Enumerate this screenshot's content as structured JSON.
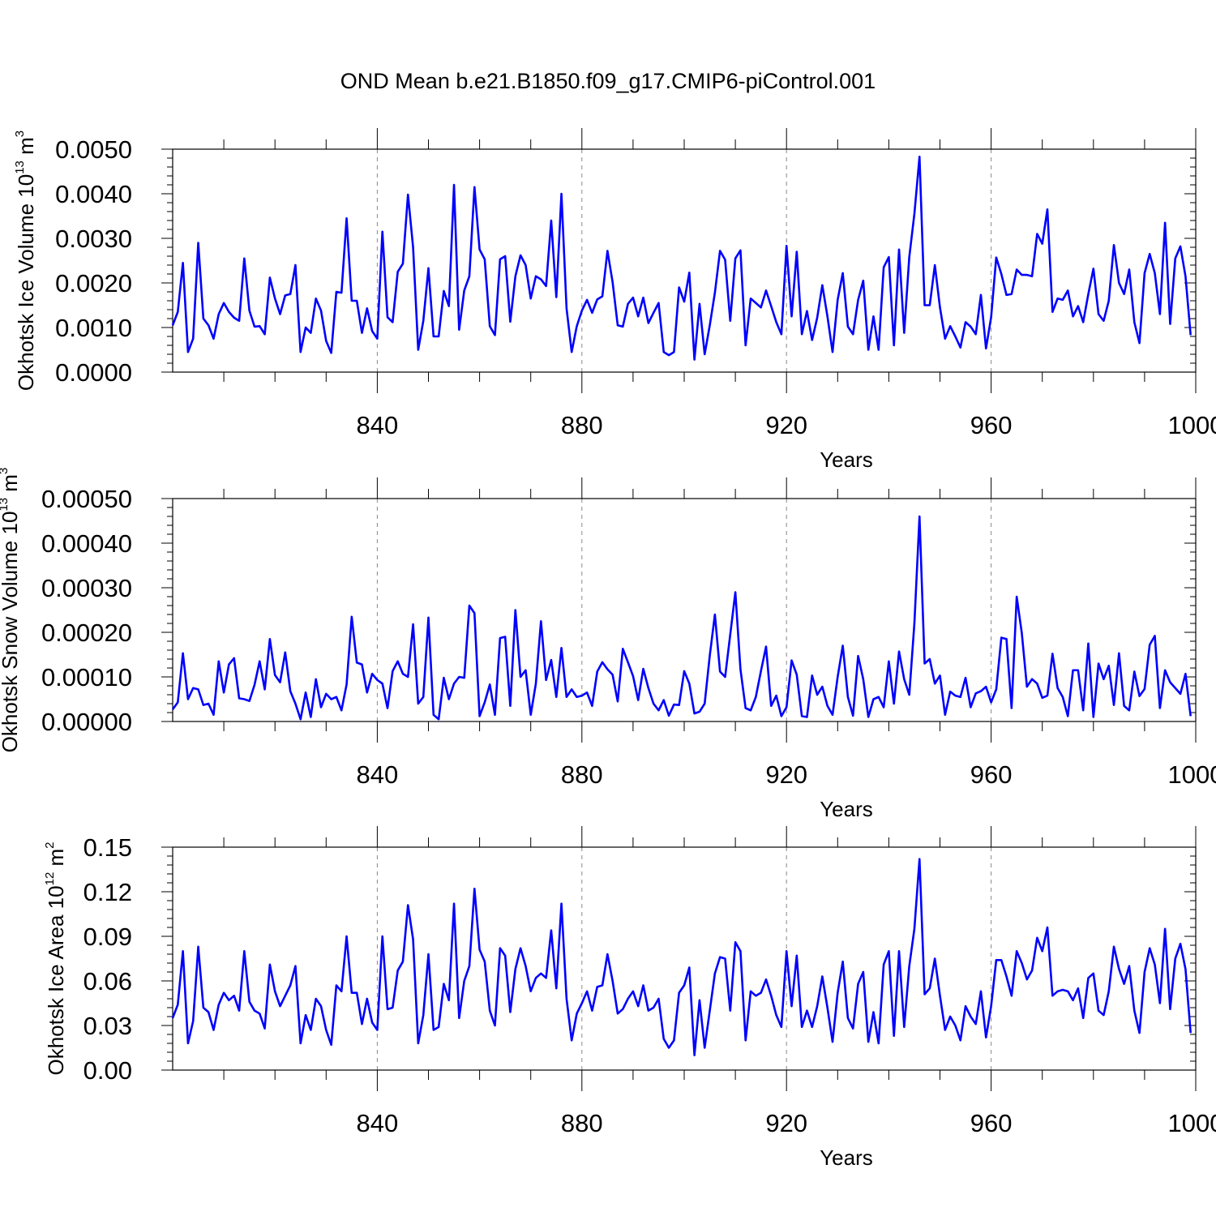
{
  "title": "OND Mean b.e21.B1850.f09_g17.CMIP6-piControl.001",
  "colors": {
    "series": "#0000ff",
    "axis": "#000000",
    "grid": "#888888"
  },
  "chart_data": [
    {
      "type": "line",
      "ylabel": "Okhotsk Ice Volume 10",
      "ylabel_sup": "13",
      "ylabel_unit": "m",
      "ylabel_unit_sup": "3",
      "xlabel": "Years",
      "xlim": [
        800,
        1000
      ],
      "ylim": [
        0,
        0.005
      ],
      "yticks": [
        "0.0000",
        "0.0010",
        "0.0020",
        "0.0030",
        "0.0040",
        "0.0050"
      ],
      "xticks": [
        "840",
        "880",
        "920",
        "960",
        "1000"
      ],
      "x_start": 800,
      "values": [
        0.00105,
        0.00135,
        0.00245,
        0.00045,
        0.00075,
        0.0029,
        0.0012,
        0.00105,
        0.00075,
        0.0013,
        0.00155,
        0.00135,
        0.00122,
        0.00115,
        0.00255,
        0.00138,
        0.00102,
        0.00103,
        0.00085,
        0.00212,
        0.00165,
        0.0013,
        0.00172,
        0.00175,
        0.0024,
        0.00045,
        0.001,
        0.00088,
        0.00165,
        0.00138,
        0.0007,
        0.00043,
        0.0018,
        0.00178,
        0.00345,
        0.0016,
        0.0016,
        0.00088,
        0.00143,
        0.00092,
        0.00075,
        0.00315,
        0.00123,
        0.00112,
        0.00225,
        0.00243,
        0.00398,
        0.0028,
        0.0005,
        0.00115,
        0.00233,
        0.0008,
        0.0008,
        0.00182,
        0.00148,
        0.0042,
        0.00095,
        0.00183,
        0.00215,
        0.00415,
        0.00275,
        0.00253,
        0.00103,
        0.00083,
        0.00253,
        0.0026,
        0.00113,
        0.00215,
        0.00262,
        0.0024,
        0.00165,
        0.00215,
        0.00208,
        0.00193,
        0.0034,
        0.00168,
        0.004,
        0.00143,
        0.00045,
        0.00103,
        0.00138,
        0.00162,
        0.00133,
        0.00163,
        0.0017,
        0.00272,
        0.00202,
        0.00105,
        0.00102,
        0.00153,
        0.00167,
        0.00125,
        0.00167,
        0.0011,
        0.00133,
        0.00155,
        0.00045,
        0.00038,
        0.00045,
        0.0019,
        0.00158,
        0.00223,
        0.00028,
        0.00153,
        0.0004,
        0.00105,
        0.00178,
        0.00272,
        0.00252,
        0.00115,
        0.00255,
        0.00273,
        0.0006,
        0.00165,
        0.00155,
        0.00145,
        0.00183,
        0.00148,
        0.00112,
        0.00085,
        0.00283,
        0.00125,
        0.0027,
        0.00085,
        0.00137,
        0.00072,
        0.00122,
        0.00195,
        0.00125,
        0.00045,
        0.00162,
        0.00222,
        0.00102,
        0.00085,
        0.00162,
        0.00205,
        0.0005,
        0.00125,
        0.0005,
        0.00235,
        0.00258,
        0.0006,
        0.00275,
        0.00088,
        0.00258,
        0.00355,
        0.00483,
        0.0015,
        0.0015,
        0.0024,
        0.00145,
        0.00075,
        0.00103,
        0.0008,
        0.00055,
        0.00112,
        0.00102,
        0.00085,
        0.00173,
        0.00053,
        0.00123,
        0.00257,
        0.0022,
        0.00173,
        0.00175,
        0.0023,
        0.00218,
        0.00218,
        0.00215,
        0.0031,
        0.00288,
        0.00365,
        0.00135,
        0.00165,
        0.00162,
        0.00183,
        0.00125,
        0.00148,
        0.00112,
        0.00175,
        0.00232,
        0.0013,
        0.00115,
        0.0016,
        0.00285,
        0.002,
        0.00175,
        0.0023,
        0.00112,
        0.00065,
        0.00222,
        0.00265,
        0.00222,
        0.0013,
        0.00335,
        0.00108,
        0.00255,
        0.00282,
        0.00215,
        0.00083
      ]
    },
    {
      "type": "line",
      "ylabel": "Okhotsk Snow Volume 10",
      "ylabel_sup": "13",
      "ylabel_unit": "m",
      "ylabel_unit_sup": "3",
      "xlabel": "Years",
      "xlim": [
        800,
        1000
      ],
      "ylim": [
        0,
        0.0005
      ],
      "yticks": [
        "0.00000",
        "0.00010",
        "0.00020",
        "0.00030",
        "0.00040",
        "0.00050"
      ],
      "xticks": [
        "840",
        "880",
        "920",
        "960",
        "1000"
      ],
      "x_start": 800,
      "values": [
        2.7e-05,
        4.3e-05,
        0.000153,
        5e-05,
        7.5e-05,
        7.2e-05,
        3.7e-05,
        4e-05,
        1.5e-05,
        0.000135,
        6.5e-05,
        0.000128,
        0.000142,
        5.2e-05,
        5e-05,
        4.6e-05,
        8.2e-05,
        0.000135,
        7.2e-05,
        0.000185,
        0.000104,
        8.8e-05,
        0.000155,
        6.8e-05,
        4e-05,
        5e-06,
        6.5e-05,
        1e-05,
        9.5e-05,
        3.2e-05,
        6.2e-05,
        5e-05,
        5.5e-05,
        2.5e-05,
        8.3e-05,
        0.000235,
        0.000132,
        0.000128,
        6.5e-05,
        0.000107,
        9.3e-05,
        8.5e-05,
        3e-05,
        0.000113,
        0.000135,
        0.000107,
        0.0001,
        0.000218,
        4e-05,
        5.5e-05,
        0.000233,
        1.5e-05,
        5e-06,
        9.8e-05,
        5e-05,
        8.5e-05,
        0.0001,
        9.8e-05,
        0.00026,
        0.000243,
        1.2e-05,
        4.3e-05,
        8.3e-05,
        1.5e-05,
        0.000187,
        0.00019,
        3.5e-05,
        0.00025,
        0.0001,
        0.000115,
        1.5e-05,
        8.5e-05,
        0.000225,
        9.3e-05,
        0.000138,
        5.5e-05,
        0.000165,
        5.5e-05,
        7.2e-05,
        5.5e-05,
        5.8e-05,
        6.5e-05,
        3.5e-05,
        0.000112,
        0.000133,
        0.000117,
        0.000105,
        4.5e-05,
        0.000163,
        0.000133,
        0.000102,
        4.8e-05,
        0.000118,
        7.5e-05,
        4e-05,
        2.5e-05,
        4.8e-05,
        1.3e-05,
        3.8e-05,
        3.7e-05,
        0.000113,
        8.5e-05,
        1.8e-05,
        2.2e-05,
        4e-05,
        0.000148,
        0.00024,
        0.000112,
        0.0001,
        0.000195,
        0.00029,
        0.000117,
        3e-05,
        2.5e-05,
        5.5e-05,
        0.000113,
        0.000168,
        3.5e-05,
        5.8e-05,
        1.2e-05,
        3.2e-05,
        0.000137,
        0.000105,
        1.2e-05,
        1e-05,
        0.000103,
        6e-05,
        7.8e-05,
        3.5e-05,
        1.5e-05,
        0.0001,
        0.00017,
        5.5e-05,
        1.3e-05,
        0.000147,
        9.5e-05,
        1e-05,
        5e-05,
        5.5e-05,
        3.2e-05,
        0.000135,
        4e-05,
        0.000157,
        9.5e-05,
        6e-05,
        0.00022,
        0.00046,
        0.00013,
        0.00014,
        8.5e-05,
        0.000103,
        1.5e-05,
        6.7e-05,
        5.8e-05,
        5.5e-05,
        9.8e-05,
        3.2e-05,
        6.3e-05,
        6.8e-05,
        7.8e-05,
        4.3e-05,
        7.2e-05,
        0.000188,
        0.000185,
        3e-05,
        0.00028,
        0.000198,
        7.8e-05,
        9.5e-05,
        8.5e-05,
        5.3e-05,
        5.8e-05,
        0.000152,
        7.5e-05,
        5.5e-05,
        1.2e-05,
        0.000115,
        0.000115,
        2.5e-05,
        0.000175,
        1e-05,
        0.00013,
        9.5e-05,
        0.000125,
        3.7e-05,
        0.000153,
        3.5e-05,
        2.5e-05,
        0.000112,
        5.7e-05,
        7.3e-05,
        0.000172,
        0.000192,
        3e-05,
        0.000115,
        8.8e-05,
        7.5e-05,
        6.2e-05,
        0.000107,
        1.2e-05
      ]
    },
    {
      "type": "line",
      "ylabel": "Okhotsk Ice Area 10",
      "ylabel_sup": "12",
      "ylabel_unit": "m",
      "ylabel_unit_sup": "2",
      "xlabel": "Years",
      "xlim": [
        800,
        1000
      ],
      "ylim": [
        0,
        0.15
      ],
      "yticks": [
        "0.00",
        "0.03",
        "0.06",
        "0.09",
        "0.12",
        "0.15"
      ],
      "xticks": [
        "840",
        "880",
        "920",
        "960",
        "1000"
      ],
      "x_start": 800,
      "values": [
        0.035,
        0.044,
        0.08,
        0.018,
        0.033,
        0.083,
        0.042,
        0.039,
        0.027,
        0.044,
        0.052,
        0.047,
        0.05,
        0.04,
        0.08,
        0.046,
        0.04,
        0.038,
        0.028,
        0.071,
        0.053,
        0.043,
        0.05,
        0.057,
        0.07,
        0.018,
        0.037,
        0.027,
        0.048,
        0.043,
        0.027,
        0.017,
        0.057,
        0.053,
        0.09,
        0.052,
        0.052,
        0.031,
        0.048,
        0.032,
        0.027,
        0.09,
        0.041,
        0.042,
        0.067,
        0.073,
        0.111,
        0.088,
        0.018,
        0.037,
        0.078,
        0.027,
        0.029,
        0.058,
        0.047,
        0.112,
        0.035,
        0.06,
        0.07,
        0.122,
        0.081,
        0.073,
        0.04,
        0.03,
        0.082,
        0.077,
        0.039,
        0.068,
        0.082,
        0.07,
        0.053,
        0.062,
        0.065,
        0.062,
        0.094,
        0.055,
        0.112,
        0.048,
        0.02,
        0.038,
        0.045,
        0.053,
        0.04,
        0.056,
        0.057,
        0.078,
        0.06,
        0.038,
        0.041,
        0.048,
        0.053,
        0.043,
        0.057,
        0.04,
        0.042,
        0.048,
        0.021,
        0.015,
        0.02,
        0.052,
        0.057,
        0.069,
        0.01,
        0.047,
        0.015,
        0.04,
        0.065,
        0.076,
        0.075,
        0.04,
        0.086,
        0.08,
        0.02,
        0.053,
        0.05,
        0.052,
        0.061,
        0.05,
        0.037,
        0.029,
        0.08,
        0.043,
        0.077,
        0.029,
        0.04,
        0.029,
        0.043,
        0.063,
        0.042,
        0.019,
        0.052,
        0.073,
        0.035,
        0.028,
        0.058,
        0.066,
        0.019,
        0.039,
        0.018,
        0.071,
        0.08,
        0.023,
        0.08,
        0.029,
        0.07,
        0.095,
        0.142,
        0.051,
        0.055,
        0.075,
        0.05,
        0.027,
        0.036,
        0.03,
        0.02,
        0.043,
        0.036,
        0.031,
        0.053,
        0.022,
        0.043,
        0.074,
        0.074,
        0.063,
        0.05,
        0.08,
        0.072,
        0.061,
        0.067,
        0.089,
        0.08,
        0.096,
        0.05,
        0.053,
        0.054,
        0.053,
        0.047,
        0.055,
        0.035,
        0.062,
        0.065,
        0.04,
        0.037,
        0.053,
        0.083,
        0.068,
        0.058,
        0.07,
        0.04,
        0.025,
        0.066,
        0.082,
        0.071,
        0.045,
        0.095,
        0.041,
        0.075,
        0.085,
        0.068,
        0.025
      ]
    }
  ]
}
